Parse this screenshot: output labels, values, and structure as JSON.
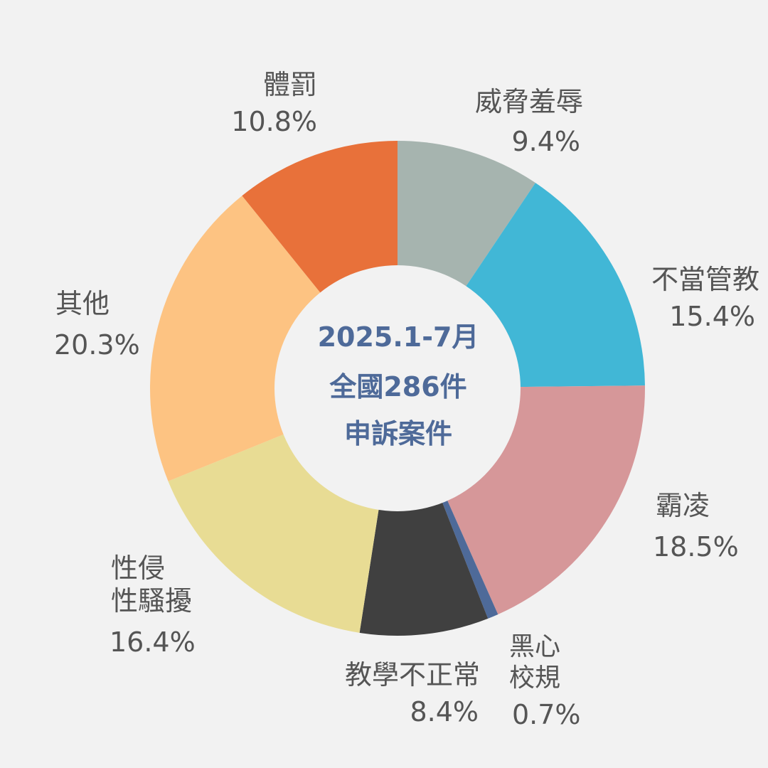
{
  "center_text": {
    "line1": "2025.1-7月",
    "line2": "全國286件",
    "line3": "申訴案件",
    "color": "#4e6a99"
  },
  "chart_data": {
    "type": "pie",
    "donut": true,
    "values_unit": "%",
    "slices": [
      {
        "label": "威脅羞辱",
        "value": 9.4,
        "value_label": "9.4%",
        "color": "#a6b4af"
      },
      {
        "label": "不當管教",
        "value": 15.4,
        "value_label": "15.4%",
        "color": "#41b7d6"
      },
      {
        "label": "霸凌",
        "value": 18.5,
        "value_label": "18.5%",
        "color": "#d69799"
      },
      {
        "label": "黑心\n校規",
        "value": 0.7,
        "value_label": "0.7%",
        "color": "#4e6a99"
      },
      {
        "label": "教學不正常",
        "value": 8.4,
        "value_label": "8.4%",
        "color": "#404040"
      },
      {
        "label": "性侵\n性騷擾",
        "value": 16.4,
        "value_label": "16.4%",
        "color": "#e8dc94"
      },
      {
        "label": "其他",
        "value": 20.3,
        "value_label": "20.3%",
        "color": "#fdc382"
      },
      {
        "label": "體罰",
        "value": 10.8,
        "value_label": "10.8%",
        "color": "#e8713a"
      }
    ]
  }
}
